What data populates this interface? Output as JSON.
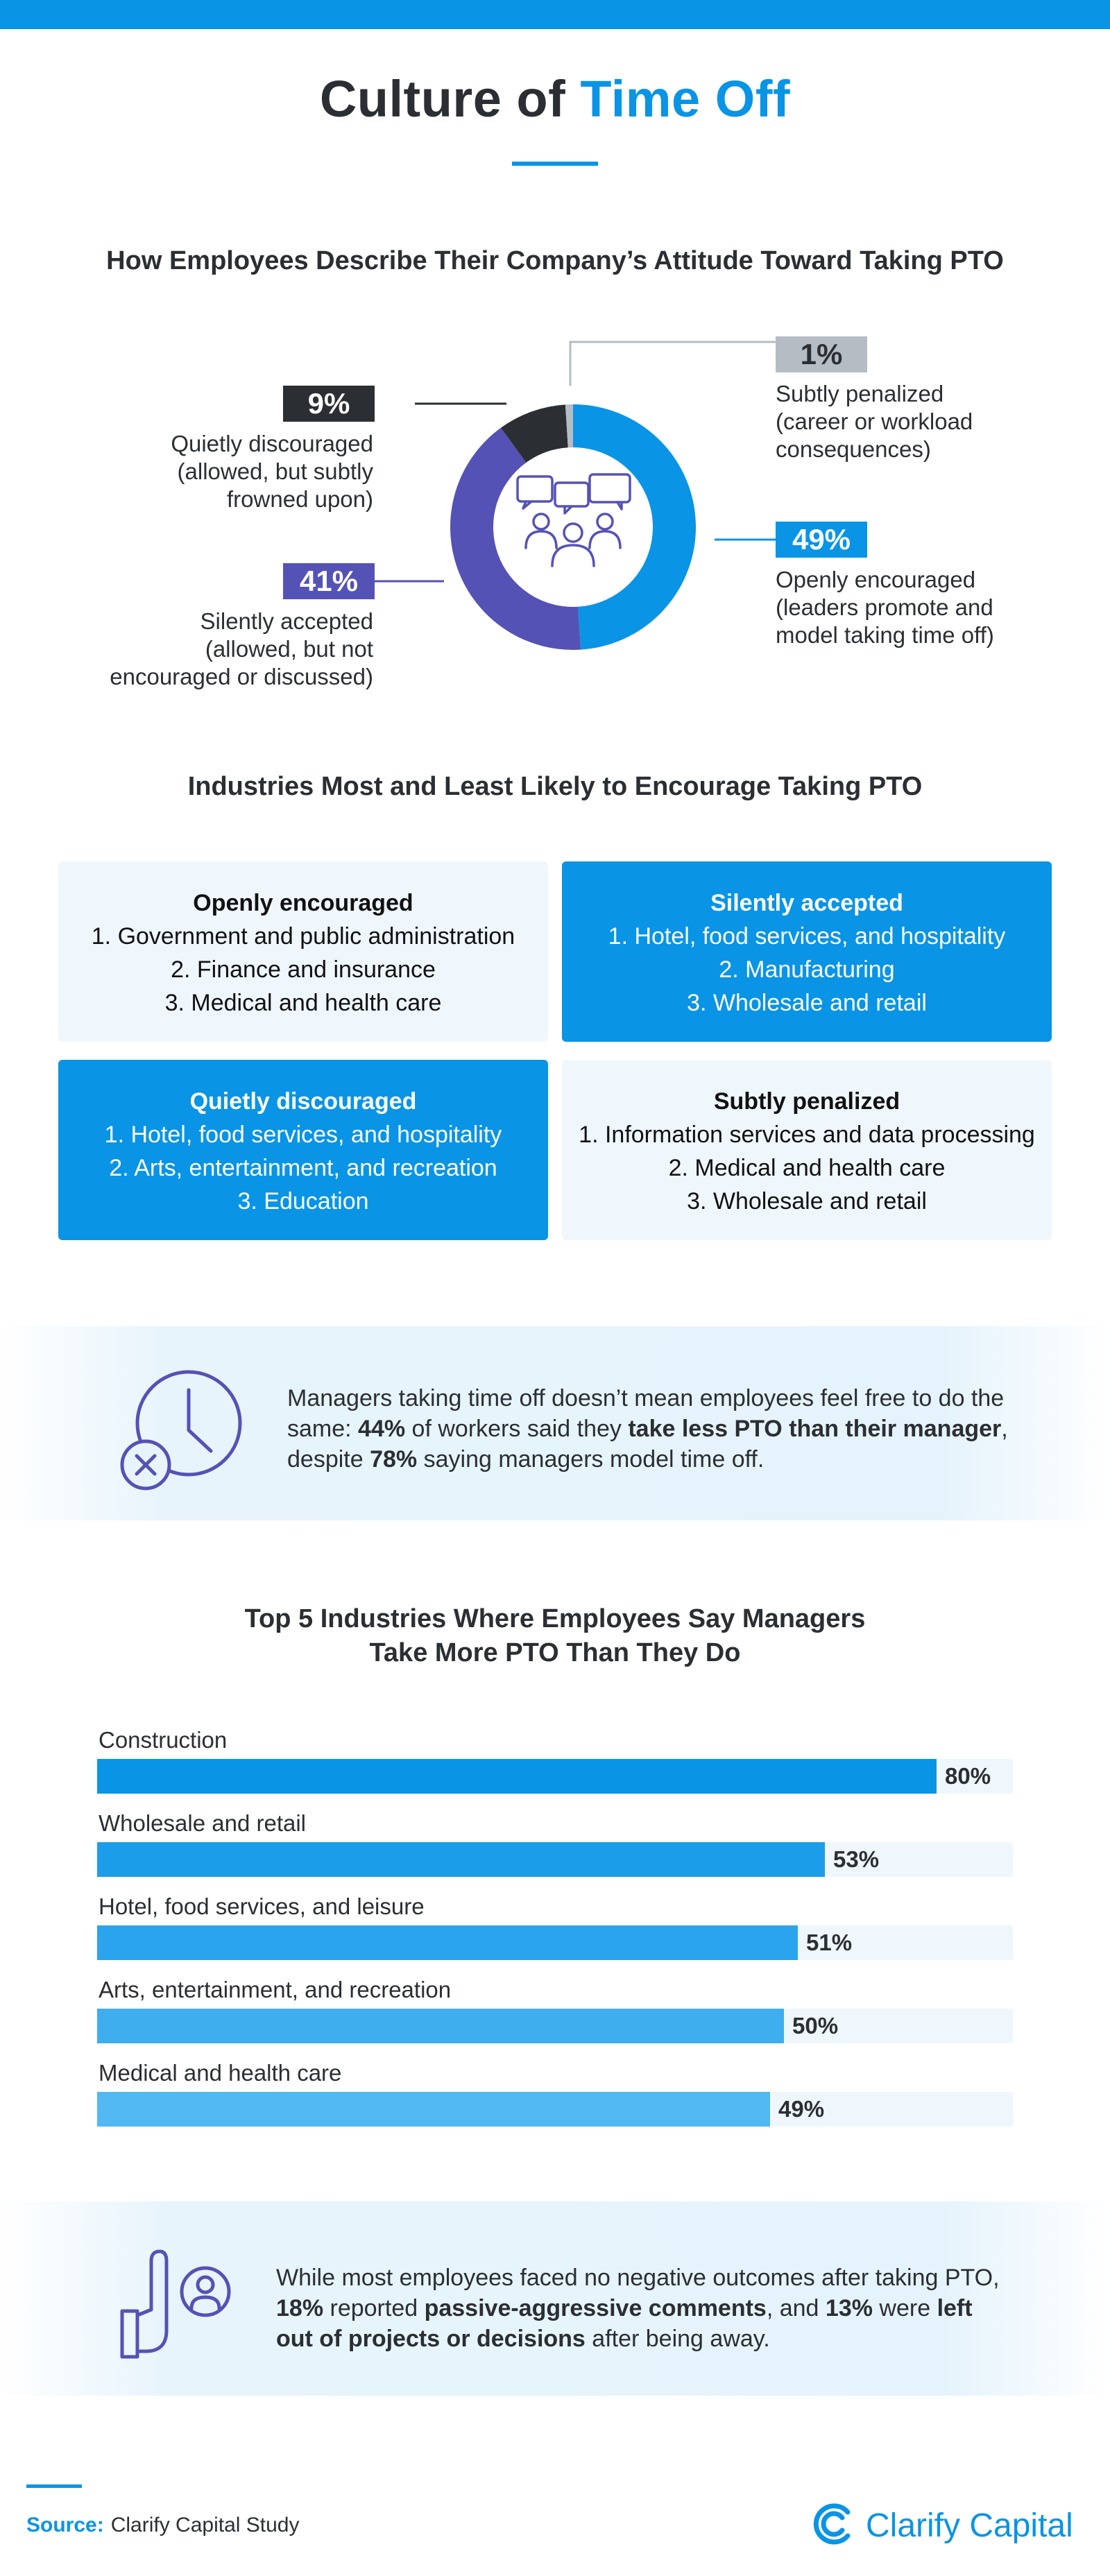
{
  "header": {
    "title_part1": "Culture of ",
    "title_part2": "Time Off"
  },
  "attitude": {
    "title": "How Employees Describe Their Company’s Attitude Toward Taking PTO",
    "segments": [
      {
        "key": "encouraged",
        "pct": "49%",
        "value": 49,
        "desc": [
          "Openly encouraged",
          "(leaders promote and",
          "model taking time off)"
        ],
        "color": "#0994e6"
      },
      {
        "key": "silently",
        "pct": "41%",
        "value": 41,
        "desc": [
          "Silently accepted",
          "(allowed, but not",
          "encouraged or discussed)"
        ],
        "color": "#5552b5"
      },
      {
        "key": "quietly",
        "pct": "9%",
        "value": 9,
        "desc": [
          "Quietly discouraged",
          "(allowed, but subtly",
          "frowned upon)"
        ],
        "color": "#2b2e33"
      },
      {
        "key": "penalized",
        "pct": "1%",
        "value": 1,
        "desc": [
          "Subtly penalized",
          "(career or workload",
          "consequences)"
        ],
        "color": "#b5bcc4"
      }
    ]
  },
  "industries": {
    "title": "Industries Most and Least Likely to Encourage Taking PTO",
    "cards": [
      {
        "heading": "Openly encouraged",
        "items": [
          "1. Government and public administration",
          "2. Finance and insurance",
          "3. Medical and health care"
        ]
      },
      {
        "heading": "Silently accepted",
        "items": [
          "1. Hotel, food services, and hospitality",
          "2. Manufacturing",
          "3. Wholesale and retail"
        ]
      },
      {
        "heading": "Quietly discouraged",
        "items": [
          "1. Hotel, food services, and hospitality",
          "2. Arts, entertainment, and recreation",
          "3. Education"
        ]
      },
      {
        "heading": "Subtly penalized",
        "items": [
          "1. Information services and data processing",
          "2. Medical and health care",
          "3. Wholesale and retail"
        ]
      }
    ]
  },
  "callout1": {
    "t1": "Managers taking time off doesn’t mean employees feel free to do the same: ",
    "b1": "44%",
    "t2": " of workers said they ",
    "b2": "take less PTO than their manager",
    "t3": ", despite ",
    "b3": "78%",
    "t4": " saying managers model time off."
  },
  "managers": {
    "title_line1": "Top 5 Industries Where Employees Say Managers",
    "title_line2": "Take More PTO Than They Do"
  },
  "chart_data": {
    "type": "bar",
    "orientation": "horizontal",
    "title": "Top 5 Industries Where Employees Say Managers Take More PTO Than They Do",
    "categories": [
      "Construction",
      "Wholesale and retail",
      "Hotel, food services, and leisure",
      "Arts, entertainment, and recreation",
      "Medical and health care"
    ],
    "values": [
      80,
      53,
      51,
      50,
      49
    ],
    "labels": [
      "80%",
      "53%",
      "51%",
      "50%",
      "49%"
    ],
    "colors": [
      "#0994e6",
      "#1c9de9",
      "#2aa4ec",
      "#3eaeef",
      "#52b8f1"
    ],
    "xlim": [
      0,
      100
    ],
    "xlabel": "",
    "ylabel": ""
  },
  "callout2": {
    "t1": "While most employees faced no negative outcomes after taking PTO, ",
    "b1": "18%",
    "t2": " reported ",
    "b2": "passive-aggressive comments",
    "t3": ", and ",
    "b3": "13%",
    "t4": " were ",
    "b4": "left out of projects or decisions",
    "t5": " after being away."
  },
  "footer": {
    "source_label": "Source:",
    "source_value": "Clarify Capital Study",
    "brand": "Clarify Capital"
  }
}
